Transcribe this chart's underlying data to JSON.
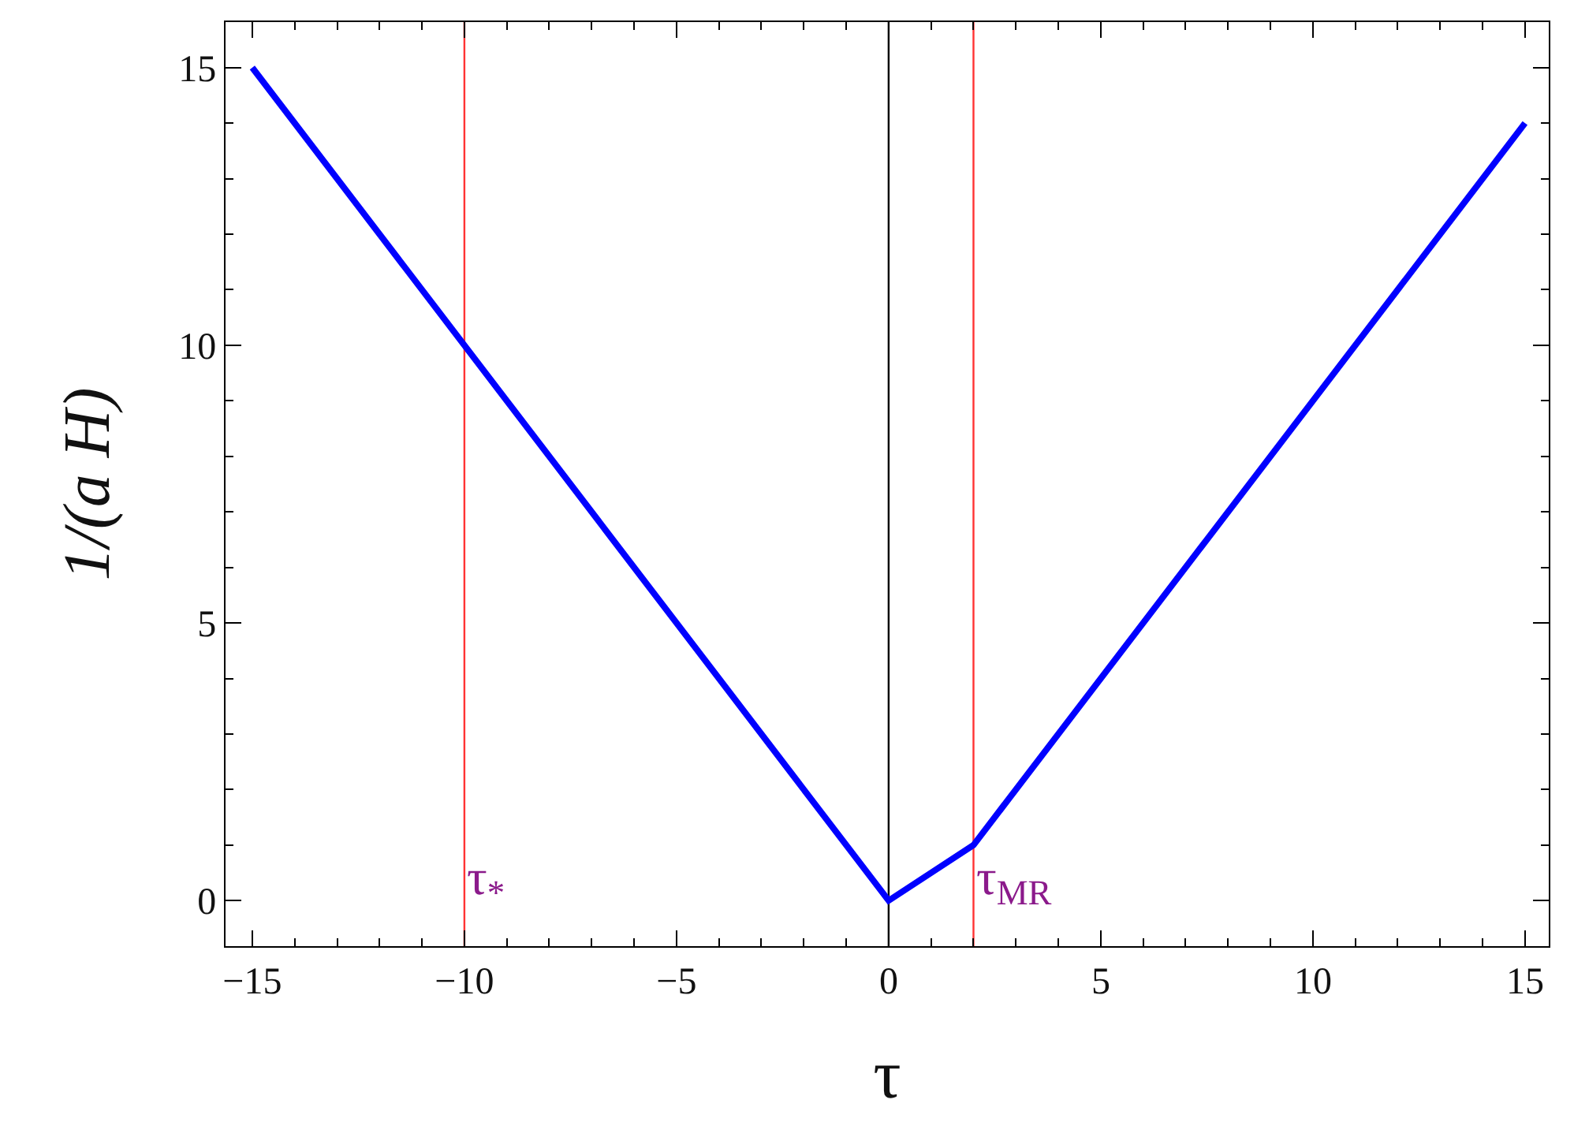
{
  "chart_data": {
    "type": "line",
    "xlabel": "τ",
    "ylabel": "1/(a H)",
    "x": [
      -15,
      0,
      2,
      15
    ],
    "series": [
      {
        "color": "#0000ff",
        "values": [
          15,
          0,
          1,
          14
        ]
      }
    ],
    "xlim": [
      -15.63,
      15.56
    ],
    "ylim": [
      -0.82,
      15.82
    ],
    "xticks": [
      {
        "value": -15,
        "label": "−15"
      },
      {
        "value": -10,
        "label": "−10"
      },
      {
        "value": -5,
        "label": "−5"
      },
      0,
      5,
      10,
      15
    ],
    "yticks": [
      0,
      5,
      10,
      15
    ],
    "ref_lines": [
      {
        "axis": "x",
        "value": 0,
        "color": "#000000"
      },
      {
        "axis": "x",
        "value": -10,
        "label": "τ$_{*}$",
        "color": "#ff3333"
      },
      {
        "axis": "x",
        "value": 2,
        "label": "τ$_{MR}$",
        "color": "#ff3333"
      }
    ],
    "grid": false,
    "marker": "none",
    "line_style": "solid"
  }
}
